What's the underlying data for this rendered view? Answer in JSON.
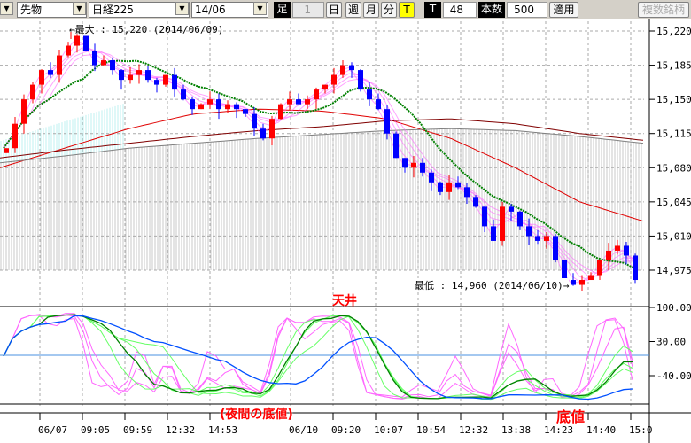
{
  "toolbar": {
    "market": "先物",
    "index": "日経225",
    "contract": "14/06",
    "bar_label": "足",
    "bar_value": "1",
    "day": "日",
    "week": "週",
    "month": "月",
    "minute": "分",
    "t_btn": "T",
    "t_label": "T",
    "t_value": "48",
    "count_label": "本数",
    "count_value": "500",
    "apply": "適用",
    "multi": "複数銘柄"
  },
  "annotations": {
    "max": "←最大 : 15,220 (2014/06/09)",
    "min": "最低 : 14,960 (2014/06/10)→",
    "ceiling": "天井",
    "night_bottom": "(夜間の底値)",
    "bottom": "底値"
  },
  "chart_data": {
    "type": "candlestick",
    "price_axis": {
      "ticks": [
        "15,220",
        "15,185",
        "15,150",
        "15,115",
        "15,080",
        "15,045",
        "15,010",
        "14,975"
      ],
      "range": [
        14950,
        15232
      ]
    },
    "oscillator_axis": {
      "ticks": [
        "100.00",
        "30.00",
        "-40.00"
      ],
      "range": [
        -100,
        100
      ]
    },
    "x_ticks": [
      "06/07",
      "09:05",
      "09:59",
      "12:32",
      "14:53",
      "06/10",
      "09:20",
      "10:07",
      "10:54",
      "12:32",
      "13:38",
      "14:23",
      "14:40",
      "15:0"
    ],
    "close": [
      15100,
      15125,
      15150,
      15165,
      15180,
      15175,
      15195,
      15205,
      15215,
      15200,
      15185,
      15190,
      15180,
      15170,
      15175,
      15180,
      15170,
      15165,
      15175,
      15160,
      15150,
      15140,
      15145,
      15150,
      15140,
      15145,
      15140,
      15135,
      15120,
      15110,
      15130,
      15145,
      15150,
      15145,
      15150,
      15160,
      15165,
      15175,
      15185,
      15180,
      15160,
      15150,
      15140,
      15115,
      15090,
      15080,
      15085,
      15075,
      15065,
      15055,
      15065,
      15060,
      15050,
      15040,
      15020,
      15005,
      15040,
      15035,
      15020,
      15010,
      15005,
      15010,
      14985,
      14965,
      14960,
      14965,
      14970,
      14985,
      14995,
      15000,
      14990,
      14965
    ],
    "long_ma_red": [
      15080,
      15100,
      15120,
      15135,
      15140,
      15138,
      15130,
      15110,
      15080,
      15045,
      15025
    ],
    "long_ma_brown": [
      15090,
      15098,
      15105,
      15112,
      15118,
      15122,
      15128,
      15130,
      15125,
      15115,
      15108
    ],
    "long_ma_gray": [
      15085,
      15092,
      15100,
      15105,
      15110,
      15114,
      15118,
      15120,
      15118,
      15112,
      15105
    ],
    "colors": {
      "up": "#ff0000",
      "down": "#0000ff",
      "ribbon": "#ff66ff",
      "ma_mid": "#008000",
      "long1": "#e00000",
      "long2": "#800000",
      "long3": "#808080"
    }
  }
}
